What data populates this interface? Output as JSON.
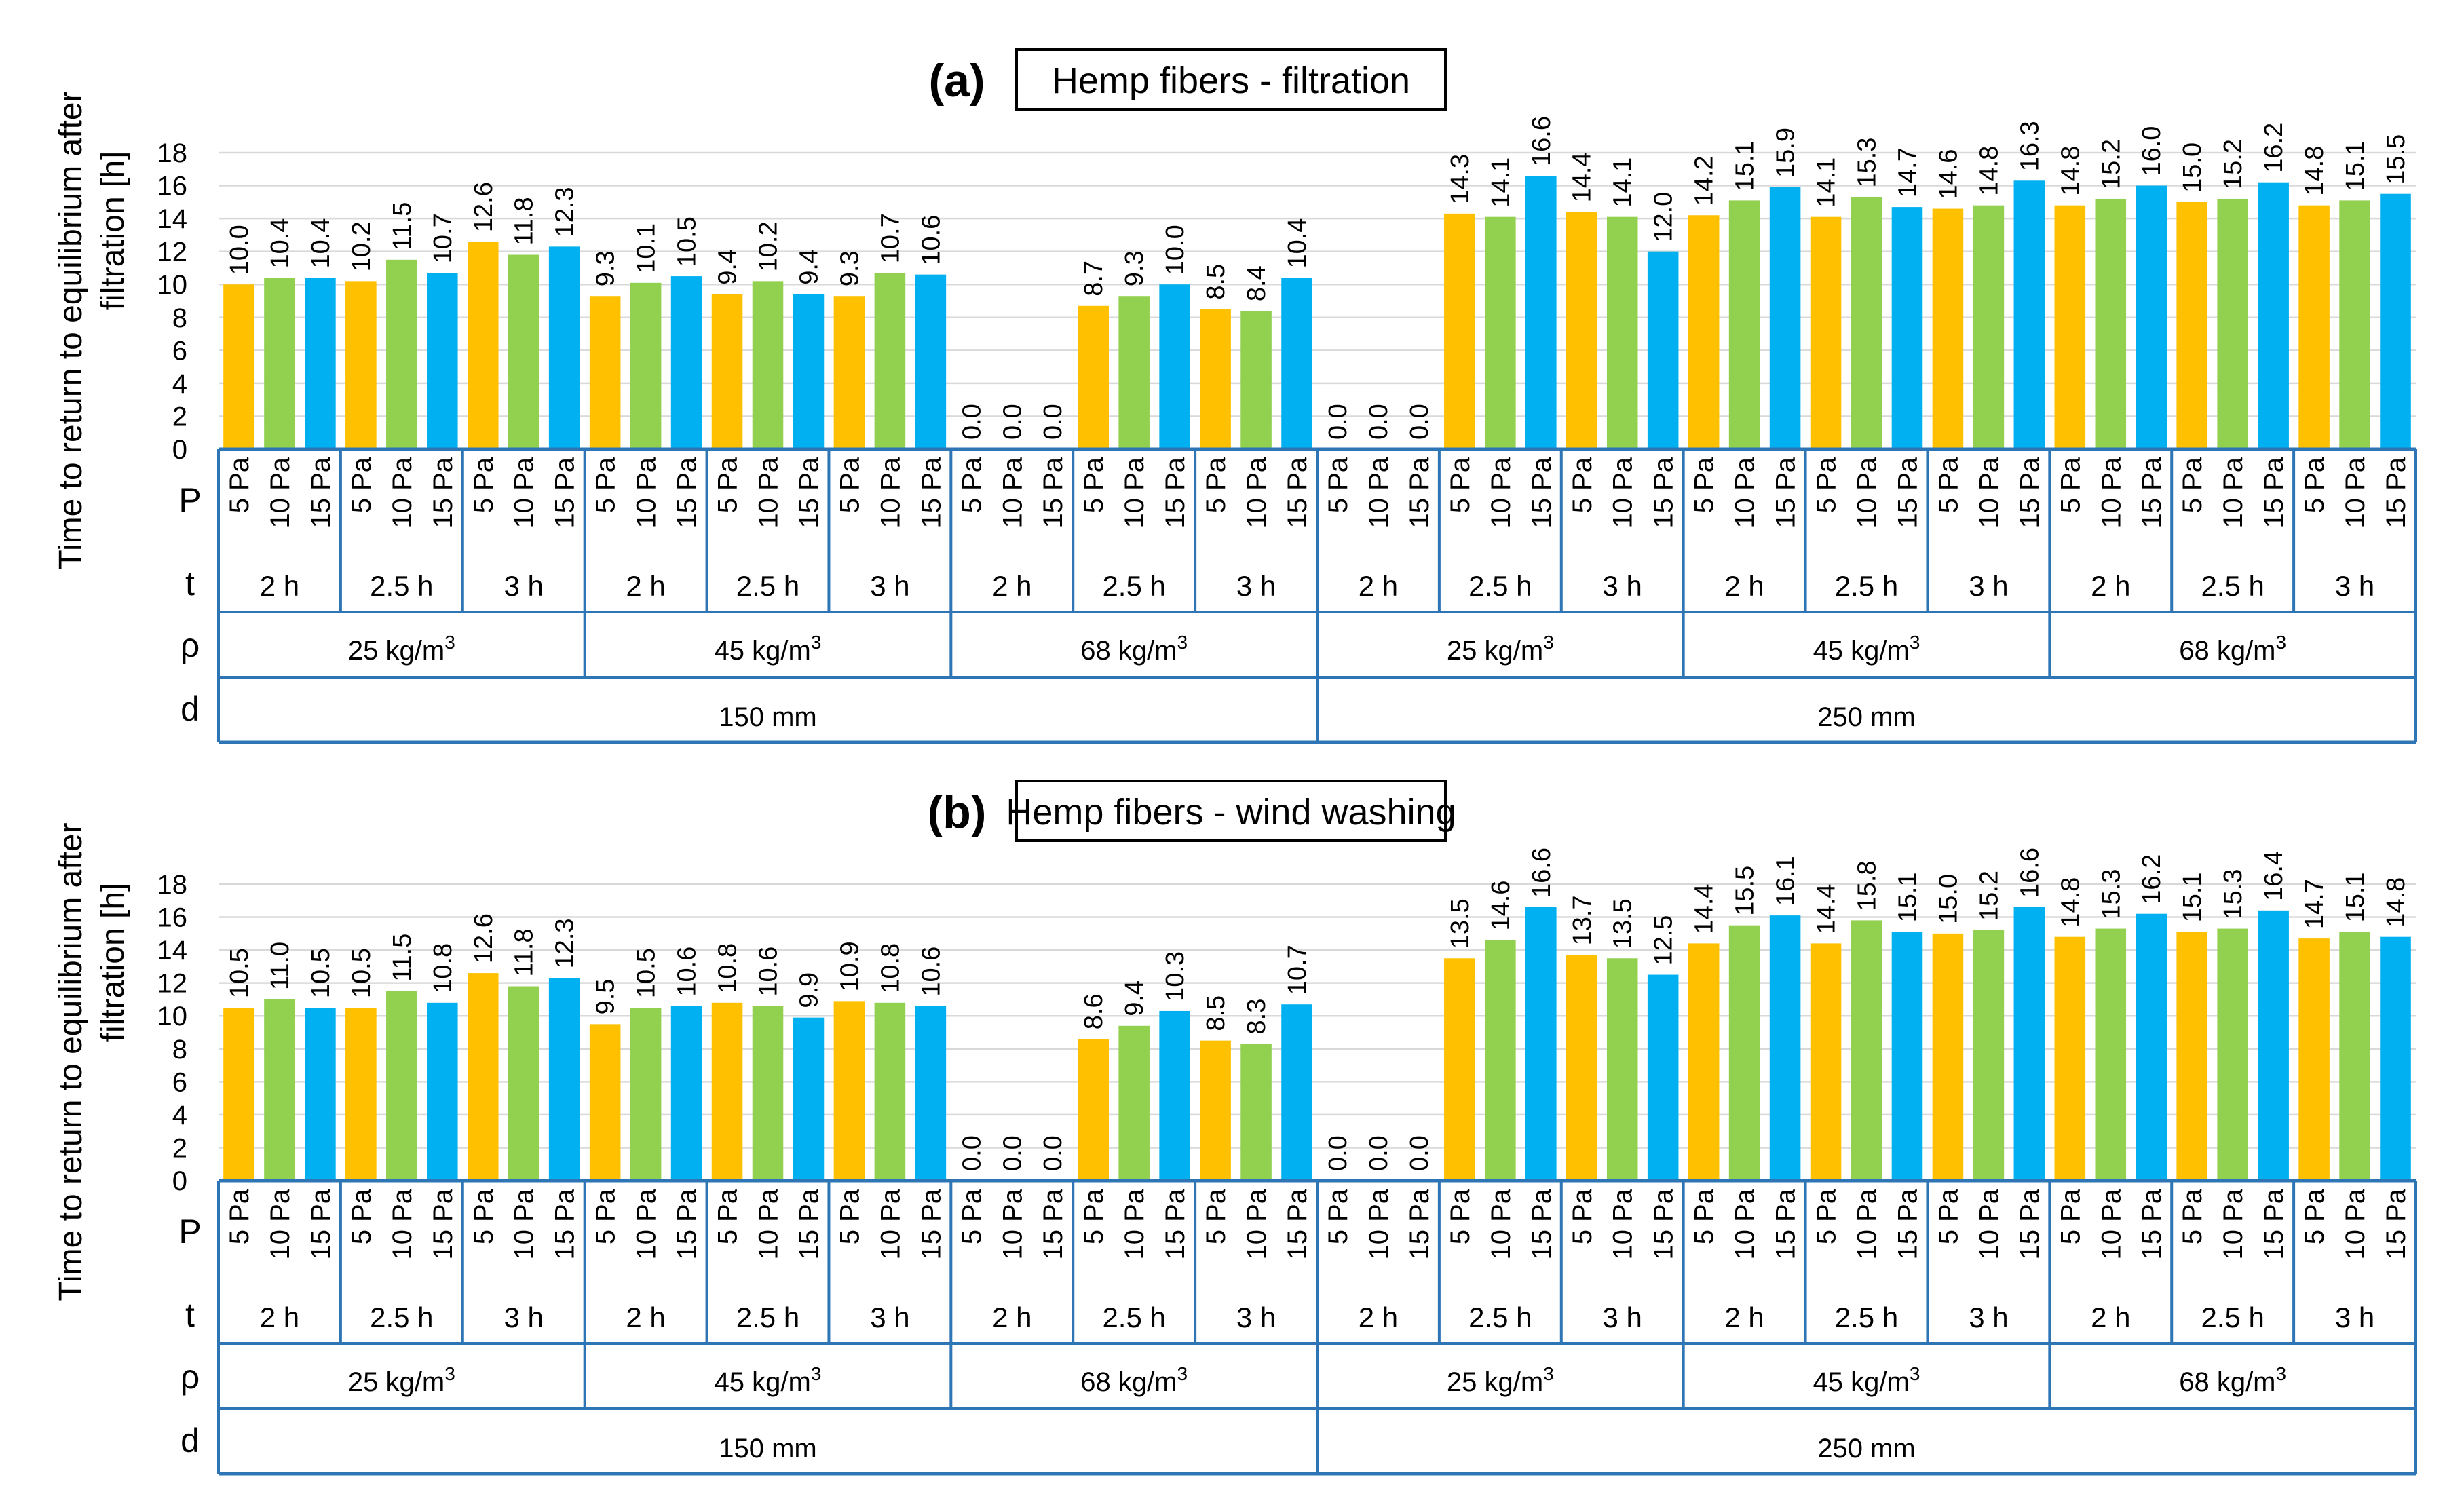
{
  "colors": {
    "p5": "#FFC000",
    "p10": "#92D050",
    "p15": "#00B0F0",
    "axis_frame": "#2E75B6",
    "grid": "#D9D9D9",
    "text": "#000000"
  },
  "shared": {
    "ylabel_line1": "Time to return to equilibrium after",
    "ylabel_line2": "filtration [h]",
    "yticks": [
      "0",
      "2",
      "4",
      "6",
      "8",
      "10",
      "12",
      "14",
      "16",
      "18"
    ],
    "ylim": [
      0,
      18
    ],
    "row_labels": {
      "P": "P",
      "t": "t",
      "rho": "ρ",
      "d": "d"
    },
    "pressures": [
      "5 Pa",
      "10 Pa",
      "15 Pa"
    ],
    "times": [
      "2 h",
      "2.5 h",
      "3 h"
    ],
    "densities": [
      {
        "num": "25",
        "unit": "kg/m",
        "sup": "3"
      },
      {
        "num": "45",
        "unit": "kg/m",
        "sup": "3"
      },
      {
        "num": "68",
        "unit": "kg/m",
        "sup": "3"
      }
    ],
    "thicknesses": [
      "150 mm",
      "250 mm"
    ]
  },
  "chart_data": [
    {
      "type": "bar",
      "panel": "(a)",
      "title": "Hemp fibers - filtration",
      "ylabel": "Time to return to equilibrium after filtration [h]",
      "ylim": [
        0,
        18
      ],
      "series": [
        {
          "name": "5 Pa",
          "values": [
            10.0,
            10.2,
            12.6,
            9.3,
            9.4,
            9.3,
            0.0,
            8.7,
            8.5,
            0.0,
            14.3,
            14.4,
            14.2,
            14.1,
            14.6,
            14.8,
            15.0,
            14.8
          ]
        },
        {
          "name": "10 Pa",
          "values": [
            10.4,
            11.5,
            11.8,
            10.1,
            10.2,
            10.7,
            0.0,
            9.3,
            8.4,
            0.0,
            14.1,
            14.1,
            15.1,
            15.3,
            14.8,
            15.2,
            15.2,
            15.1
          ]
        },
        {
          "name": "15 Pa",
          "values": [
            10.4,
            10.7,
            12.3,
            10.5,
            9.4,
            10.6,
            0.0,
            10.0,
            10.4,
            0.0,
            16.6,
            12.0,
            15.9,
            14.7,
            16.3,
            16.0,
            16.2,
            15.5
          ]
        }
      ]
    },
    {
      "type": "bar",
      "panel": "(b)",
      "title": "Hemp fibers - wind washing",
      "ylabel": "Time to return to equilibrium after filtration [h]",
      "ylim": [
        0,
        18
      ],
      "series": [
        {
          "name": "5 Pa",
          "values": [
            10.5,
            10.5,
            12.6,
            9.5,
            10.8,
            10.9,
            0.0,
            8.6,
            8.5,
            0.0,
            13.5,
            13.7,
            14.4,
            14.4,
            15.0,
            14.8,
            15.1,
            14.7
          ]
        },
        {
          "name": "10 Pa",
          "values": [
            11.0,
            11.5,
            11.8,
            10.5,
            10.6,
            10.8,
            0.0,
            9.4,
            8.3,
            0.0,
            14.6,
            13.5,
            15.5,
            15.8,
            15.2,
            15.3,
            15.3,
            15.1
          ]
        },
        {
          "name": "15 Pa",
          "values": [
            10.5,
            10.8,
            12.3,
            10.6,
            9.9,
            10.6,
            0.0,
            10.3,
            10.7,
            0.0,
            16.6,
            12.5,
            16.1,
            15.1,
            16.6,
            16.2,
            16.4,
            14.8
          ]
        }
      ]
    }
  ]
}
